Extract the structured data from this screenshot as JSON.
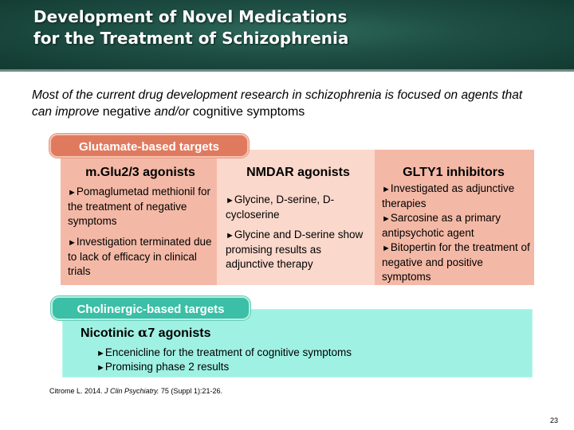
{
  "header": {
    "title_line1": "Development of Novel Medications",
    "title_line2": "for the Treatment of Schizophrenia"
  },
  "intro": {
    "part1": "Most of the current drug development research in schizophrenia is focused on agents that can improve ",
    "emph1": "negative",
    "part2": " and/or ",
    "emph2": "cognitive symptoms"
  },
  "glutamate": {
    "label": "Glutamate-based targets",
    "columns": [
      {
        "heading": "m.Glu2/3 agonists",
        "bullets": [
          "Pomaglumetad methionil for the treatment of negative symptoms",
          "Investigation terminated due to lack of efficacy in clinical trials"
        ]
      },
      {
        "heading": "NMDAR agonists",
        "bullets": [
          "Glycine, D-serine, D-cycloserine",
          "Glycine and D-serine show promising results as adjunctive therapy"
        ]
      },
      {
        "heading": "GLTY1 inhibitors",
        "bullets": [
          "Investigated as adjunctive therapies",
          "Sarcosine as a primary antipsychotic agent",
          "Bitopertin for the treatment of negative and positive symptoms"
        ]
      }
    ]
  },
  "cholinergic": {
    "label": "Cholinergic-based targets",
    "heading_pre": "Nicotinic ",
    "heading_alpha": "α",
    "heading_post": "7 agonists",
    "bullets": [
      "Encenicline for the treatment of cognitive symptoms",
      "Promising phase 2 results"
    ]
  },
  "bullet_marker": "►",
  "citation": {
    "authors": "Citrome L. 2014. ",
    "journal": "J Clin Psychiatry.",
    "rest": " 75 (Suppl 1):21-26."
  },
  "page_number": "23",
  "colors": {
    "header_green": "#1e4e44",
    "glutamate_accent": "#e07a5f",
    "glutamate_panel": "#f4b9a6",
    "glutamate_panel_mid": "#fbd8cc",
    "cholinergic_accent": "#3bbfa6",
    "cholinergic_panel": "#9ff1e3"
  }
}
